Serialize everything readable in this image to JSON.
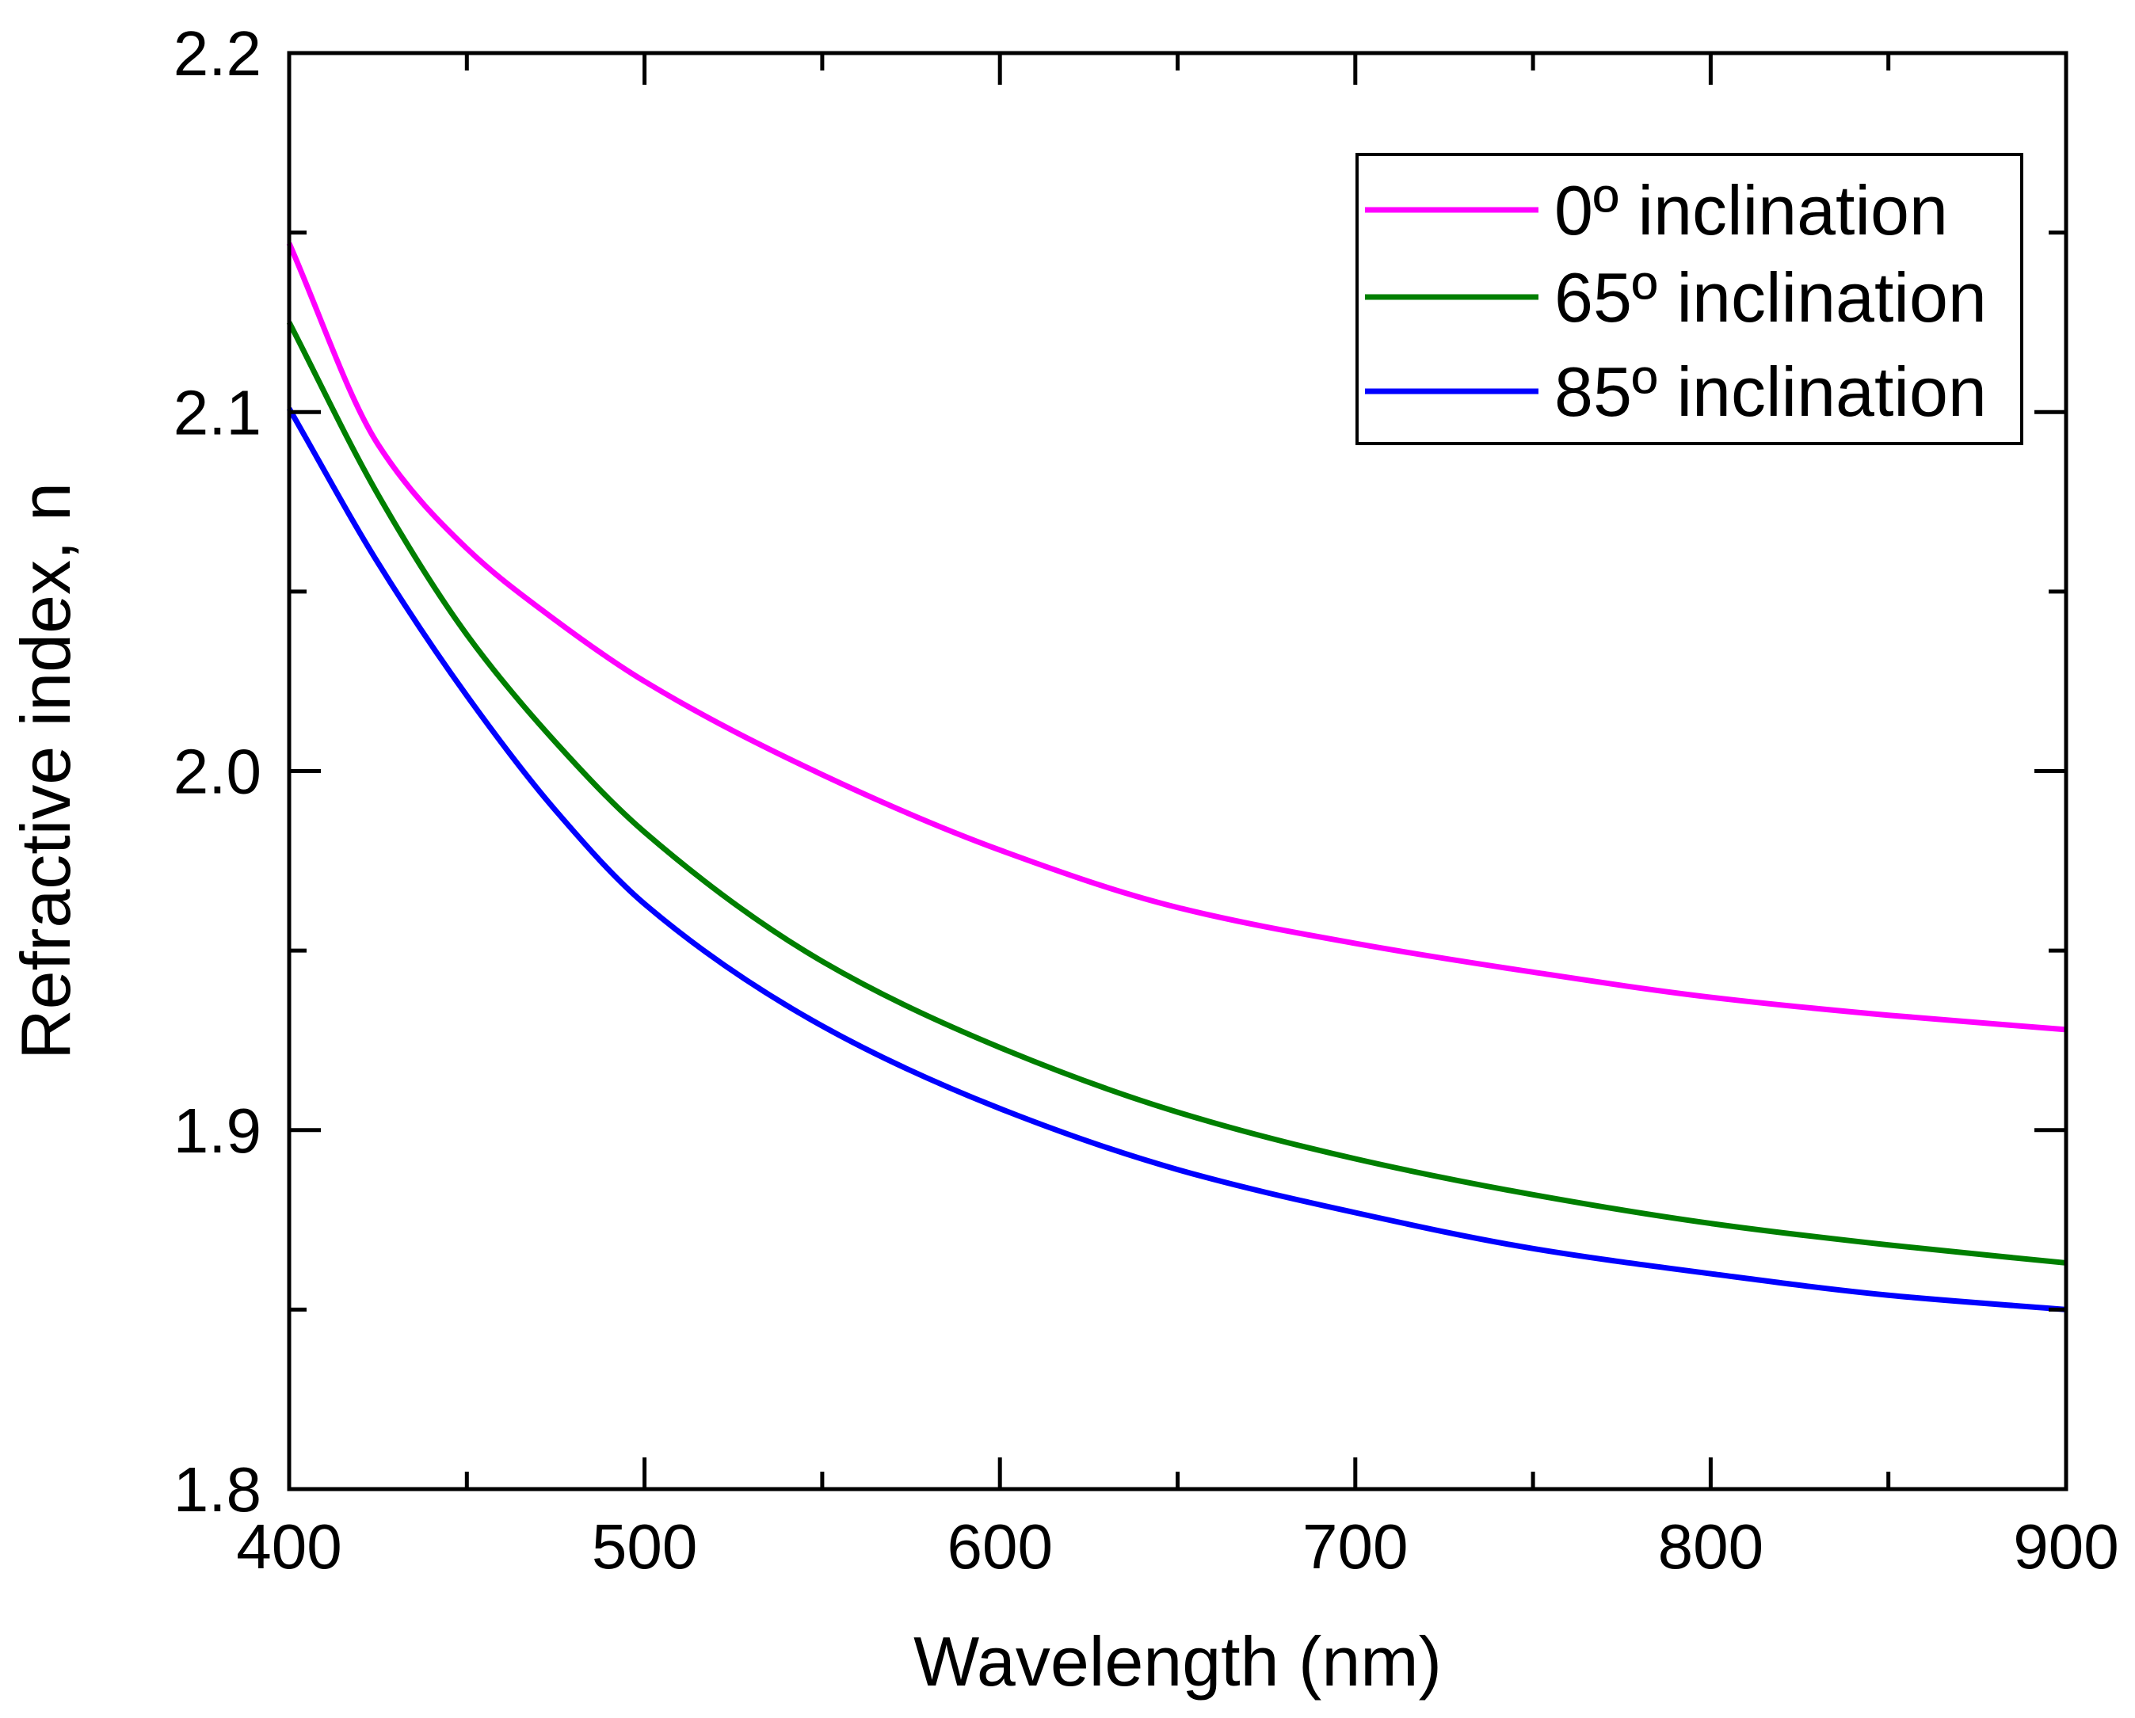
{
  "chart_data": {
    "type": "line",
    "title": "",
    "xlabel": "Wavelength (nm)",
    "ylabel": "Refractive index, n",
    "xlim": [
      400,
      900
    ],
    "ylim": [
      1.8,
      2.2
    ],
    "xticks": [
      400,
      500,
      600,
      700,
      800,
      900
    ],
    "xtick_labels": [
      "400",
      "500",
      "600",
      "700",
      "800",
      "900"
    ],
    "yticks": [
      1.8,
      1.9,
      2.0,
      2.1,
      2.2
    ],
    "ytick_labels": [
      "1.8",
      "1.9",
      "2.0",
      "2.1",
      "2.2"
    ],
    "x_minor_step": 50,
    "y_minor_step": 0.05,
    "grid": false,
    "legend_position": "top-right",
    "x": [
      400,
      425,
      450,
      475,
      500,
      550,
      600,
      650,
      700,
      750,
      800,
      850,
      900
    ],
    "series": [
      {
        "name": "0º inclination",
        "color": "#FF00FF",
        "values": [
          2.147,
          2.091,
          2.062,
          2.042,
          2.025,
          1.999,
          1.978,
          1.962,
          1.952,
          1.944,
          1.937,
          1.932,
          1.928
        ]
      },
      {
        "name": "65º inclination",
        "color": "#007F00",
        "values": [
          2.125,
          2.077,
          2.038,
          2.008,
          1.983,
          1.947,
          1.923,
          1.905,
          1.892,
          1.882,
          1.874,
          1.868,
          1.863
        ]
      },
      {
        "name": "85º inclination",
        "color": "#0000FF",
        "values": [
          2.101,
          2.058,
          2.021,
          1.989,
          1.963,
          1.929,
          1.906,
          1.889,
          1.877,
          1.867,
          1.86,
          1.854,
          1.85
        ]
      }
    ]
  }
}
